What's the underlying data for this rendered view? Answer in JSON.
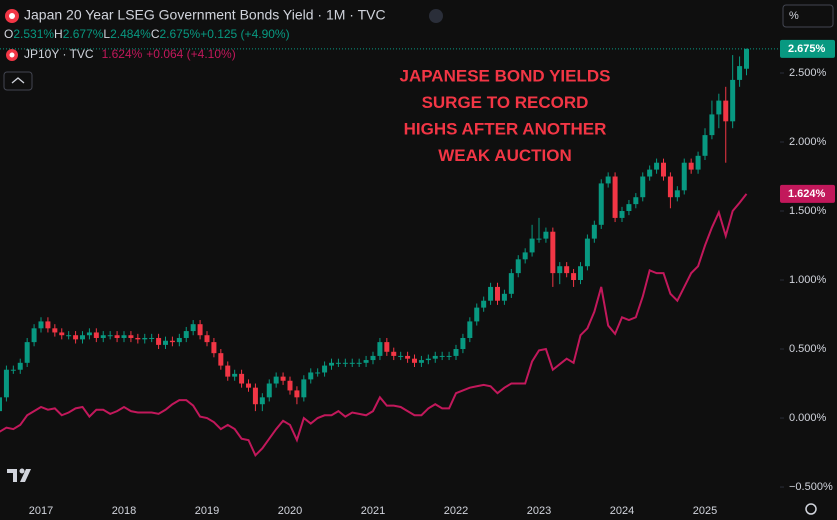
{
  "chart_data": {
    "type": "candlestick",
    "title": "Japan 20 Year LSEG Government Bonds Yield · 1M · TVC",
    "ohlc_legend": [
      {
        "label": "O",
        "value": "2.531%"
      },
      {
        "label": "H",
        "value": "2.677%"
      },
      {
        "label": "L",
        "value": "2.484%"
      },
      {
        "label": "C",
        "value": "2.675%"
      }
    ],
    "change_text": "+0.125 (+4.90%)",
    "annotation": [
      "JAPANESE BOND YIELDS",
      "SURGE TO RECORD",
      "HIGHS AFTER ANOTHER",
      "WEAK AUCTION"
    ],
    "unit_button": "%",
    "categories": [
      null,
      null,
      null,
      null,
      null,
      null,
      "2017",
      null,
      null,
      null,
      null,
      null,
      null,
      null,
      null,
      null,
      null,
      null,
      "2018",
      null,
      null,
      null,
      null,
      null,
      null,
      null,
      null,
      null,
      null,
      null,
      "2019",
      null,
      null,
      null,
      null,
      null,
      null,
      null,
      null,
      null,
      null,
      null,
      "2020",
      null,
      null,
      null,
      null,
      null,
      null,
      null,
      null,
      null,
      null,
      null,
      "2021",
      null,
      null,
      null,
      null,
      null,
      null,
      null,
      null,
      null,
      null,
      null,
      "2022",
      null,
      null,
      null,
      null,
      null,
      null,
      null,
      null,
      null,
      null,
      null,
      "2023",
      null,
      null,
      null,
      null,
      null,
      null,
      null,
      null,
      null,
      null,
      null,
      "2024",
      null,
      null,
      null,
      null,
      null,
      null,
      null,
      null,
      null,
      null,
      null,
      "2025",
      null,
      null,
      null,
      null,
      null,
      null
    ],
    "series": [
      {
        "name": "Japan 20 Year LSEG Government Bonds Yield",
        "up_color": "#089981",
        "down_color": "#f23645",
        "last_label": "2.675%",
        "open": [
          0.05,
          0.15,
          0.35,
          0.35,
          0.4,
          0.55,
          0.65,
          0.7,
          0.65,
          0.62,
          0.6,
          0.6,
          0.57,
          0.6,
          0.62,
          0.58,
          0.6,
          0.6,
          0.58,
          0.6,
          0.58,
          0.57,
          0.58,
          0.58,
          0.53,
          0.56,
          0.55,
          0.58,
          0.63,
          0.68,
          0.6,
          0.55,
          0.47,
          0.38,
          0.3,
          0.32,
          0.25,
          0.22,
          0.1,
          0.15,
          0.25,
          0.3,
          0.27,
          0.2,
          0.15,
          0.28,
          0.33,
          0.33,
          0.38,
          0.4,
          0.4,
          0.4,
          0.4,
          0.4,
          0.42,
          0.45,
          0.55,
          0.48,
          0.45,
          0.45,
          0.43,
          0.4,
          0.42,
          0.43,
          0.45,
          0.45,
          0.45,
          0.5,
          0.58,
          0.7,
          0.8,
          0.85,
          0.95,
          0.85,
          0.9,
          1.05,
          1.15,
          1.2,
          1.3,
          1.3,
          1.35,
          1.05,
          1.1,
          1.05,
          1.0,
          1.1,
          1.3,
          1.4,
          1.7,
          1.75,
          1.45,
          1.5,
          1.55,
          1.6,
          1.75,
          1.8,
          1.85,
          1.75,
          1.6,
          1.65,
          1.85,
          1.8,
          1.9,
          2.05,
          2.2,
          2.3,
          2.15,
          2.45,
          2.531
        ],
        "high": [
          0.18,
          0.38,
          0.38,
          0.43,
          0.58,
          0.68,
          0.73,
          0.73,
          0.68,
          0.65,
          0.63,
          0.63,
          0.63,
          0.65,
          0.65,
          0.63,
          0.63,
          0.63,
          0.63,
          0.63,
          0.61,
          0.61,
          0.61,
          0.61,
          0.59,
          0.59,
          0.61,
          0.66,
          0.71,
          0.71,
          0.63,
          0.58,
          0.5,
          0.41,
          0.35,
          0.35,
          0.28,
          0.25,
          0.18,
          0.28,
          0.33,
          0.33,
          0.3,
          0.23,
          0.31,
          0.36,
          0.36,
          0.41,
          0.43,
          0.43,
          0.43,
          0.43,
          0.43,
          0.45,
          0.48,
          0.58,
          0.58,
          0.51,
          0.48,
          0.48,
          0.46,
          0.45,
          0.46,
          0.48,
          0.48,
          0.48,
          0.53,
          0.61,
          0.73,
          0.83,
          0.88,
          0.98,
          0.98,
          0.93,
          1.08,
          1.18,
          1.23,
          1.4,
          1.45,
          1.38,
          1.38,
          1.13,
          1.13,
          1.08,
          1.13,
          1.33,
          1.43,
          1.73,
          1.78,
          1.78,
          1.53,
          1.58,
          1.63,
          1.78,
          1.83,
          1.88,
          1.88,
          1.78,
          1.68,
          1.88,
          1.88,
          1.93,
          2.1,
          2.3,
          2.35,
          2.4,
          2.63,
          2.62,
          2.677
        ],
        "low": [
          0.02,
          0.12,
          0.32,
          0.32,
          0.37,
          0.52,
          0.62,
          0.62,
          0.59,
          0.57,
          0.57,
          0.54,
          0.54,
          0.57,
          0.55,
          0.55,
          0.57,
          0.55,
          0.55,
          0.55,
          0.54,
          0.54,
          0.55,
          0.5,
          0.5,
          0.52,
          0.52,
          0.55,
          0.6,
          0.57,
          0.52,
          0.44,
          0.35,
          0.27,
          0.27,
          0.22,
          0.19,
          0.05,
          0.05,
          0.12,
          0.22,
          0.24,
          0.17,
          0.1,
          0.12,
          0.25,
          0.3,
          0.3,
          0.35,
          0.37,
          0.37,
          0.37,
          0.37,
          0.37,
          0.39,
          0.42,
          0.45,
          0.42,
          0.42,
          0.4,
          0.37,
          0.37,
          0.39,
          0.4,
          0.42,
          0.42,
          0.42,
          0.47,
          0.55,
          0.67,
          0.77,
          0.82,
          0.82,
          0.82,
          0.87,
          1.02,
          1.12,
          1.17,
          1.27,
          1.27,
          0.95,
          0.97,
          1.02,
          0.95,
          0.97,
          1.07,
          1.27,
          1.37,
          1.67,
          1.42,
          1.42,
          1.47,
          1.52,
          1.57,
          1.72,
          1.77,
          1.72,
          1.52,
          1.57,
          1.62,
          1.77,
          1.77,
          1.87,
          2.02,
          2.1,
          1.85,
          2.1,
          2.4,
          2.484
        ],
        "close": [
          0.15,
          0.35,
          0.35,
          0.4,
          0.55,
          0.65,
          0.7,
          0.65,
          0.62,
          0.6,
          0.6,
          0.57,
          0.6,
          0.62,
          0.58,
          0.6,
          0.6,
          0.58,
          0.6,
          0.58,
          0.57,
          0.58,
          0.58,
          0.53,
          0.56,
          0.55,
          0.58,
          0.63,
          0.68,
          0.6,
          0.55,
          0.47,
          0.38,
          0.3,
          0.32,
          0.25,
          0.22,
          0.1,
          0.15,
          0.25,
          0.3,
          0.27,
          0.2,
          0.15,
          0.28,
          0.33,
          0.33,
          0.38,
          0.4,
          0.4,
          0.4,
          0.4,
          0.4,
          0.42,
          0.45,
          0.55,
          0.48,
          0.45,
          0.45,
          0.43,
          0.4,
          0.42,
          0.43,
          0.45,
          0.45,
          0.45,
          0.5,
          0.58,
          0.7,
          0.8,
          0.85,
          0.95,
          0.85,
          0.9,
          1.05,
          1.15,
          1.2,
          1.3,
          1.3,
          1.35,
          1.05,
          1.1,
          1.05,
          1.0,
          1.1,
          1.3,
          1.4,
          1.7,
          1.75,
          1.45,
          1.5,
          1.55,
          1.6,
          1.75,
          1.8,
          1.85,
          1.75,
          1.6,
          1.65,
          1.85,
          1.8,
          1.9,
          2.05,
          2.2,
          2.3,
          2.15,
          2.45,
          2.55,
          2.675
        ]
      },
      {
        "name": "JP10Y · TVC",
        "color": "#c2185b",
        "last_label": "1.624%",
        "legend_value": "1.624%",
        "legend_change": "+0.064 (+4.10%)",
        "values": [
          -0.1,
          -0.07,
          -0.08,
          -0.05,
          0.02,
          0.05,
          0.08,
          0.06,
          0.07,
          0.02,
          0.04,
          0.07,
          0.08,
          0.01,
          0.06,
          0.06,
          0.03,
          0.05,
          0.08,
          0.05,
          0.04,
          0.04,
          0.04,
          0.03,
          0.06,
          0.1,
          0.13,
          0.13,
          0.09,
          0.01,
          0.0,
          -0.03,
          -0.08,
          -0.05,
          -0.08,
          -0.15,
          -0.16,
          -0.27,
          -0.22,
          -0.15,
          -0.08,
          -0.02,
          -0.05,
          -0.16,
          0.0,
          -0.04,
          0.0,
          0.02,
          0.02,
          0.05,
          0.01,
          0.04,
          0.03,
          0.02,
          0.05,
          0.15,
          0.09,
          0.09,
          0.08,
          0.05,
          0.02,
          0.02,
          0.07,
          0.1,
          0.07,
          0.07,
          0.18,
          0.2,
          0.22,
          0.23,
          0.24,
          0.23,
          0.18,
          0.22,
          0.25,
          0.25,
          0.25,
          0.41,
          0.49,
          0.5,
          0.35,
          0.39,
          0.43,
          0.4,
          0.6,
          0.65,
          0.77,
          0.95,
          0.67,
          0.61,
          0.73,
          0.71,
          0.73,
          0.88,
          1.07,
          1.05,
          1.05,
          0.9,
          0.85,
          0.95,
          1.05,
          1.1,
          1.25,
          1.38,
          1.49,
          1.32,
          1.5,
          1.56,
          1.624
        ]
      }
    ],
    "ylim": [
      -0.594,
      3.029
    ],
    "yticks": [
      {
        "value": -0.5,
        "label": "−0.500%"
      },
      {
        "value": 0,
        "label": "0.000%"
      },
      {
        "value": 0.5,
        "label": "0.500%"
      },
      {
        "value": 1,
        "label": "1.000%"
      },
      {
        "value": 1.5,
        "label": "1.500%"
      },
      {
        "value": 2,
        "label": "2.000%"
      },
      {
        "value": 2.5,
        "label": "2.500%"
      }
    ],
    "grid": false
  }
}
